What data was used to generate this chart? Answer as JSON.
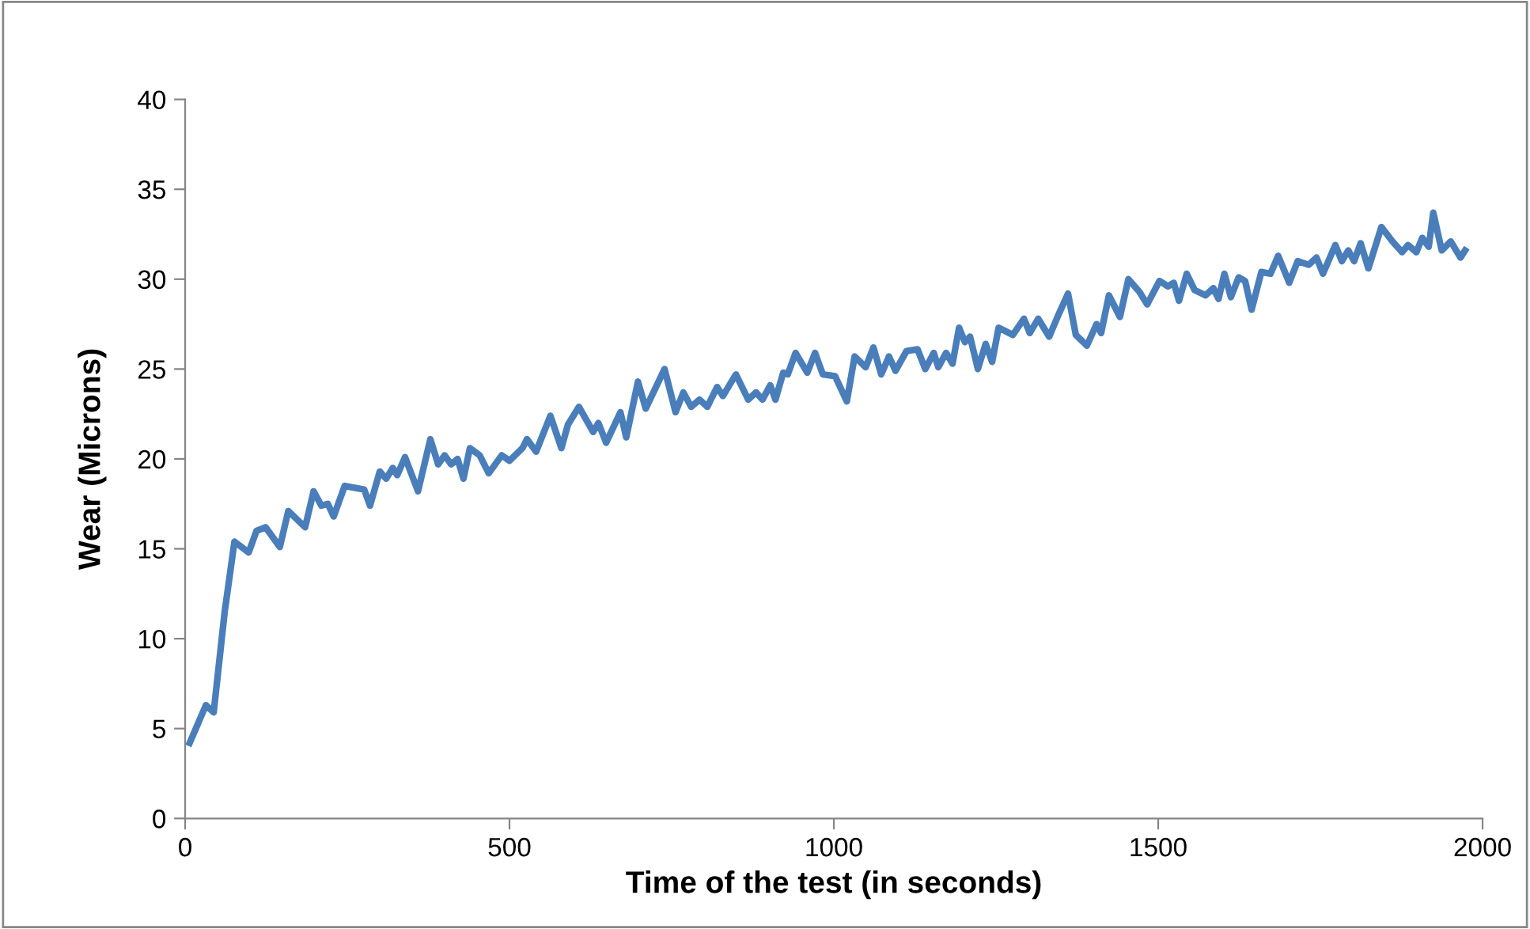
{
  "chart_data": {
    "type": "line",
    "xlabel": "Time of the test (in seconds)",
    "ylabel": "Wear (Microns)",
    "xlim": [
      0,
      2000
    ],
    "xticks": [
      0,
      500,
      1000,
      1500,
      2000
    ],
    "ylim": [
      0,
      40
    ],
    "yticks": [
      0,
      5,
      10,
      15,
      20,
      25,
      30,
      35,
      40
    ],
    "grid": false,
    "marker": "none",
    "line_style": "solid",
    "series": [
      {
        "color": "#4a7ebb",
        "x": [
          7,
          32,
          44,
          61,
          76,
          98,
          110,
          124,
          146,
          159,
          185,
          198,
          210,
          220,
          229,
          246,
          276,
          285,
          300,
          310,
          320,
          327,
          339,
          359,
          378,
          390,
          400,
          410,
          420,
          429,
          439,
          454,
          468,
          488,
          500,
          520,
          527,
          541,
          563,
          580,
          590,
          607,
          629,
          637,
          649,
          671,
          680,
          698,
          710,
          739,
          756,
          768,
          780,
          793,
          805,
          820,
          829,
          849,
          868,
          880,
          890,
          902,
          910,
          922,
          929,
          941,
          959,
          971,
          983,
          1002,
          1020,
          1032,
          1049,
          1061,
          1073,
          1085,
          1095,
          1112,
          1129,
          1141,
          1154,
          1161,
          1173,
          1183,
          1193,
          1202,
          1210,
          1222,
          1234,
          1244,
          1254,
          1276,
          1293,
          1302,
          1315,
          1332,
          1346,
          1361,
          1373,
          1390,
          1405,
          1412,
          1424,
          1441,
          1454,
          1471,
          1483,
          1502,
          1515,
          1524,
          1532,
          1544,
          1556,
          1573,
          1585,
          1593,
          1602,
          1612,
          1624,
          1634,
          1644,
          1659,
          1673,
          1685,
          1702,
          1715,
          1732,
          1744,
          1754,
          1773,
          1783,
          1793,
          1802,
          1812,
          1824,
          1844,
          1861,
          1876,
          1885,
          1898,
          1907,
          1917,
          1924,
          1937,
          1951,
          1966,
          1973
        ],
        "values": [
          4.2,
          6.3,
          5.9,
          11.5,
          15.4,
          14.8,
          16.0,
          16.2,
          15.1,
          17.1,
          16.2,
          18.2,
          17.4,
          17.5,
          16.8,
          18.5,
          18.3,
          17.4,
          19.3,
          18.9,
          19.5,
          19.1,
          20.1,
          18.2,
          21.1,
          19.7,
          20.2,
          19.7,
          20.0,
          18.9,
          20.6,
          20.2,
          19.2,
          20.2,
          19.9,
          20.6,
          21.1,
          20.4,
          22.4,
          20.6,
          21.9,
          22.9,
          21.5,
          22.0,
          20.9,
          22.6,
          21.2,
          24.3,
          22.8,
          25.0,
          22.6,
          23.7,
          22.9,
          23.3,
          22.9,
          24.0,
          23.5,
          24.7,
          23.3,
          23.7,
          23.3,
          24.1,
          23.3,
          24.8,
          24.7,
          25.9,
          24.8,
          25.9,
          24.7,
          24.6,
          23.2,
          25.7,
          25.1,
          26.2,
          24.7,
          25.7,
          24.9,
          26.0,
          26.1,
          25.0,
          25.9,
          25.1,
          25.9,
          25.3,
          27.3,
          26.5,
          26.8,
          25.0,
          26.4,
          25.4,
          27.3,
          26.9,
          27.8,
          27.0,
          27.8,
          26.8,
          28.0,
          29.2,
          26.9,
          26.3,
          27.5,
          27.0,
          29.1,
          27.9,
          30.0,
          29.3,
          28.6,
          29.9,
          29.6,
          29.8,
          28.8,
          30.3,
          29.4,
          29.1,
          29.5,
          28.9,
          30.3,
          29.0,
          30.1,
          29.9,
          28.3,
          30.4,
          30.3,
          31.3,
          29.8,
          31.0,
          30.8,
          31.2,
          30.3,
          31.9,
          31.0,
          31.6,
          31.0,
          32.0,
          30.6,
          32.9,
          32.1,
          31.5,
          31.9,
          31.5,
          32.3,
          31.8,
          33.7,
          31.6,
          32.1,
          31.2,
          31.6
        ]
      }
    ]
  }
}
